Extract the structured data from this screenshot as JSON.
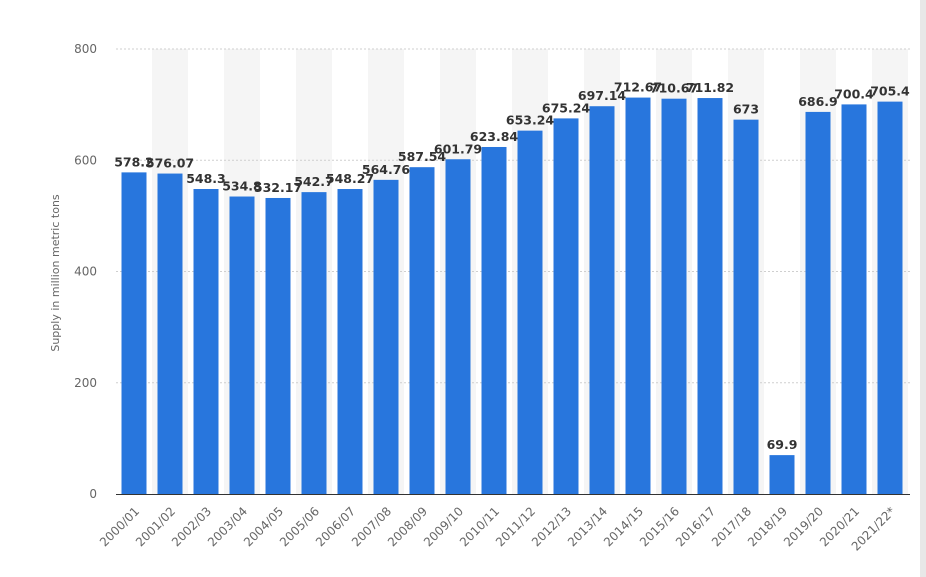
{
  "chart_data": {
    "type": "bar",
    "title": "",
    "xlabel": "",
    "ylabel": "Supply in million metric tons",
    "ylim": [
      0,
      800
    ],
    "yticks": [
      0,
      200,
      400,
      600,
      800
    ],
    "grid": true,
    "categories": [
      "2000/01",
      "2001/02",
      "2002/03",
      "2003/04",
      "2004/05",
      "2005/06",
      "2006/07",
      "2007/08",
      "2008/09",
      "2009/10",
      "2010/11",
      "2011/12",
      "2012/13",
      "2013/14",
      "2014/15",
      "2015/16",
      "2016/17",
      "2017/18",
      "2018/19",
      "2019/20",
      "2020/21",
      "2021/22*"
    ],
    "values": [
      578.2,
      576.07,
      548.3,
      534.8,
      532.17,
      542.7,
      548.27,
      564.76,
      587.54,
      601.79,
      623.84,
      653.24,
      675.24,
      697.14,
      712.67,
      710.67,
      711.82,
      673,
      69.9,
      686.9,
      700.4,
      705.4
    ],
    "value_labels": [
      "578.2",
      "576.07",
      "548.3",
      "534.8",
      "532.17",
      "542.7",
      "548.27",
      "564.76",
      "587.54",
      "601.79",
      "623.84",
      "653.24",
      "675.24",
      "697.14",
      "712.67",
      "710.67",
      "711.82",
      "673",
      "69.9",
      "686.9",
      "700.4",
      "705.4"
    ],
    "colors": {
      "bar": "#2876dd",
      "grid": "#cfcfcf",
      "band": "#f5f5f5",
      "axis": "#333333"
    }
  }
}
